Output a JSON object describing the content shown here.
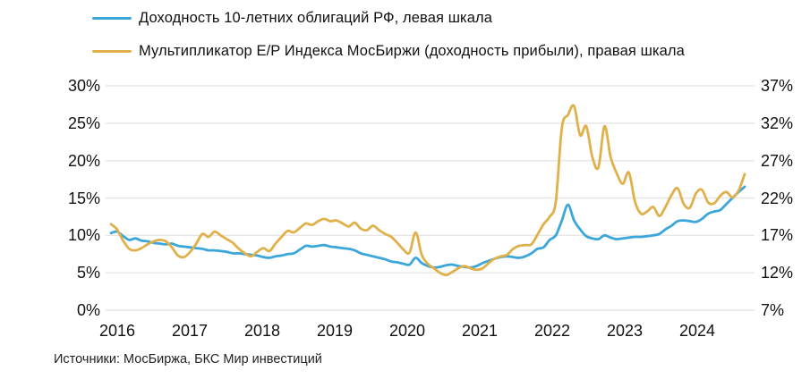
{
  "legend": [
    {
      "label": "Доходность 10-летних облигаций РФ, левая шкала",
      "color": "#3BA6DA"
    },
    {
      "label": "Мультипликатор E/P Индекса МосБиржи (доходность прибыли), правая шкала",
      "color": "#E0B04A"
    }
  ],
  "source": "Источники: МосБиржа, БКС Мир инвестиций",
  "colors": {
    "blue": "#3BA6DA",
    "yellow": "#E0B04A",
    "grid": "#e6e6e6",
    "text": "#111111"
  },
  "chart_data": {
    "type": "line",
    "title": "",
    "xlabel": "",
    "ylabel_left": "Доходность 10-летних облигаций РФ",
    "ylabel_right": "Мультипликатор E/P Индекса МосБиржи",
    "grid": "horizontal",
    "legend_position": "top-left",
    "x_tick_labels": [
      "2016",
      "2017",
      "2018",
      "2019",
      "2020",
      "2021",
      "2022",
      "2023",
      "2024"
    ],
    "left_axis": {
      "min": 0,
      "max": 30,
      "tick_labels": [
        "30%",
        "25%",
        "20%",
        "15%",
        "10%",
        "5%",
        "0%"
      ]
    },
    "right_axis": {
      "min": 7,
      "max": 37,
      "tick_labels": [
        "37%",
        "32%",
        "27%",
        "22%",
        "17%",
        "12%",
        "7%"
      ]
    },
    "x_monthly_start": "2016-01",
    "x_monthly_end": "2024-09",
    "series": [
      {
        "name": "Доходность 10-летних облигаций РФ, левая шкала",
        "axis": "left",
        "color": "#3BA6DA",
        "values": [
          10.3,
          10.5,
          9.9,
          9.4,
          9.6,
          9.3,
          9.2,
          9.0,
          8.9,
          8.8,
          8.9,
          8.6,
          8.5,
          8.4,
          8.3,
          8.2,
          8.0,
          8.0,
          7.9,
          7.8,
          7.6,
          7.6,
          7.5,
          7.4,
          7.3,
          7.1,
          7.0,
          7.2,
          7.3,
          7.5,
          7.6,
          8.1,
          8.6,
          8.5,
          8.6,
          8.7,
          8.5,
          8.4,
          8.3,
          8.2,
          8.0,
          7.6,
          7.4,
          7.2,
          7.0,
          6.8,
          6.5,
          6.4,
          6.2,
          6.1,
          7.0,
          6.3,
          5.9,
          5.7,
          5.8,
          6.0,
          6.1,
          5.9,
          5.8,
          5.7,
          5.9,
          6.3,
          6.6,
          6.9,
          7.1,
          7.2,
          7.1,
          7.0,
          7.2,
          7.6,
          8.2,
          8.4,
          9.4,
          10.0,
          12.0,
          14.1,
          12.0,
          10.8,
          9.9,
          9.6,
          9.5,
          10.0,
          9.7,
          9.5,
          9.6,
          9.7,
          9.8,
          9.8,
          9.9,
          10.0,
          10.2,
          10.8,
          11.3,
          11.9,
          12.0,
          11.9,
          11.8,
          12.2,
          12.9,
          13.2,
          13.4,
          14.2,
          15.0,
          15.8,
          16.5
        ]
      },
      {
        "name": "Мультипликатор E/P Индекса МосБиржи (доходность прибыли), правая шкала",
        "axis": "right",
        "color": "#E0B04A",
        "values": [
          18.5,
          17.8,
          16.3,
          15.2,
          15.0,
          15.3,
          15.8,
          16.2,
          16.4,
          16.2,
          15.4,
          14.3,
          14.1,
          14.8,
          15.9,
          17.2,
          16.8,
          17.5,
          17.0,
          16.5,
          16.0,
          15.2,
          14.6,
          14.2,
          14.8,
          15.3,
          14.9,
          15.9,
          16.8,
          17.6,
          17.4,
          18.0,
          18.6,
          18.4,
          18.9,
          19.2,
          18.9,
          19.0,
          18.6,
          18.2,
          18.7,
          17.9,
          17.7,
          18.3,
          17.7,
          17.2,
          16.8,
          16.0,
          15.1,
          14.7,
          17.4,
          14.4,
          13.2,
          12.6,
          12.0,
          11.7,
          12.1,
          12.6,
          12.9,
          12.6,
          12.4,
          12.6,
          13.3,
          13.9,
          14.2,
          14.4,
          15.2,
          15.6,
          15.7,
          15.8,
          17.1,
          18.5,
          19.5,
          21.5,
          31.4,
          33.1,
          34.3,
          30.4,
          31.6,
          27.5,
          26.1,
          31.6,
          27.5,
          25.3,
          23.9,
          25.4,
          21.5,
          19.9,
          20.2,
          20.8,
          19.6,
          20.8,
          22.4,
          23.3,
          21.2,
          20.7,
          22.6,
          23.1,
          21.4,
          21.3,
          22.3,
          22.8,
          22.1,
          23.0,
          25.2
        ]
      }
    ]
  }
}
